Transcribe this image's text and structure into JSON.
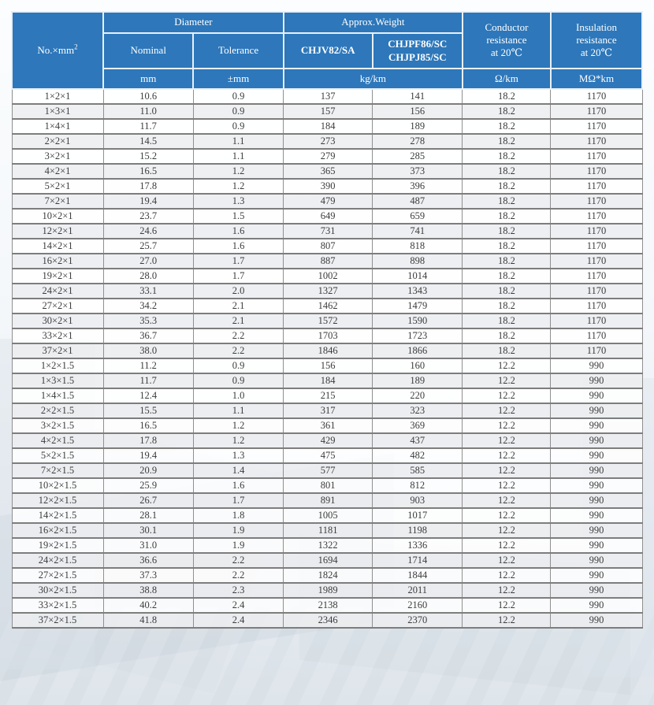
{
  "colors": {
    "header_bg": "#2d77ba",
    "header_text": "#ffffff",
    "grid_line": "#7d7d7d",
    "alt_row": "#ececee"
  },
  "table": {
    "header": {
      "no_label": "No.×mm",
      "no_sup": "2",
      "diameter": "Diameter",
      "approx_weight": "Approx.Weight",
      "nominal": "Nominal",
      "tolerance": "Tolerance",
      "model_a": "CHJV82/SA",
      "model_b": "CHJPF86/SC\nCHJPJ85/SC",
      "conductor": "Conductor\nresistance\nat 20℃",
      "insulation": "Insulation\nresistance\nat 20℃"
    },
    "units": {
      "diameter_nominal": "mm",
      "diameter_tolerance": "±mm",
      "weight": "kg/km",
      "conductor": "Ω/km",
      "insulation": "MΩ*km"
    },
    "rows": [
      [
        "1×2×1",
        "10.6",
        "0.9",
        "137",
        "141",
        "18.2",
        "1170"
      ],
      [
        "1×3×1",
        "11.0",
        "0.9",
        "157",
        "156",
        "18.2",
        "1170"
      ],
      [
        "1×4×1",
        "11.7",
        "0.9",
        "184",
        "189",
        "18.2",
        "1170"
      ],
      [
        "2×2×1",
        "14.5",
        "1.1",
        "273",
        "278",
        "18.2",
        "1170"
      ],
      [
        "3×2×1",
        "15.2",
        "1.1",
        "279",
        "285",
        "18.2",
        "1170"
      ],
      [
        "4×2×1",
        "16.5",
        "1.2",
        "365",
        "373",
        "18.2",
        "1170"
      ],
      [
        "5×2×1",
        "17.8",
        "1.2",
        "390",
        "396",
        "18.2",
        "1170"
      ],
      [
        "7×2×1",
        "19.4",
        "1.3",
        "479",
        "487",
        "18.2",
        "1170"
      ],
      [
        "10×2×1",
        "23.7",
        "1.5",
        "649",
        "659",
        "18.2",
        "1170"
      ],
      [
        "12×2×1",
        "24.6",
        "1.6",
        "731",
        "741",
        "18.2",
        "1170"
      ],
      [
        "14×2×1",
        "25.7",
        "1.6",
        "807",
        "818",
        "18.2",
        "1170"
      ],
      [
        "16×2×1",
        "27.0",
        "1.7",
        "887",
        "898",
        "18.2",
        "1170"
      ],
      [
        "19×2×1",
        "28.0",
        "1.7",
        "1002",
        "1014",
        "18.2",
        "1170"
      ],
      [
        "24×2×1",
        "33.1",
        "2.0",
        "1327",
        "1343",
        "18.2",
        "1170"
      ],
      [
        "27×2×1",
        "34.2",
        "2.1",
        "1462",
        "1479",
        "18.2",
        "1170"
      ],
      [
        "30×2×1",
        "35.3",
        "2.1",
        "1572",
        "1590",
        "18.2",
        "1170"
      ],
      [
        "33×2×1",
        "36.7",
        "2.2",
        "1703",
        "1723",
        "18.2",
        "1170"
      ],
      [
        "37×2×1",
        "38.0",
        "2.2",
        "1846",
        "1866",
        "18.2",
        "1170"
      ],
      [
        "1×2×1.5",
        "11.2",
        "0.9",
        "156",
        "160",
        "12.2",
        "990"
      ],
      [
        "1×3×1.5",
        "11.7",
        "0.9",
        "184",
        "189",
        "12.2",
        "990"
      ],
      [
        "1×4×1.5",
        "12.4",
        "1.0",
        "215",
        "220",
        "12.2",
        "990"
      ],
      [
        "2×2×1.5",
        "15.5",
        "1.1",
        "317",
        "323",
        "12.2",
        "990"
      ],
      [
        "3×2×1.5",
        "16.5",
        "1.2",
        "361",
        "369",
        "12.2",
        "990"
      ],
      [
        "4×2×1.5",
        "17.8",
        "1.2",
        "429",
        "437",
        "12.2",
        "990"
      ],
      [
        "5×2×1.5",
        "19.4",
        "1.3",
        "475",
        "482",
        "12.2",
        "990"
      ],
      [
        "7×2×1.5",
        "20.9",
        "1.4",
        "577",
        "585",
        "12.2",
        "990"
      ],
      [
        "10×2×1.5",
        "25.9",
        "1.6",
        "801",
        "812",
        "12.2",
        "990"
      ],
      [
        "12×2×1.5",
        "26.7",
        "1.7",
        "891",
        "903",
        "12.2",
        "990"
      ],
      [
        "14×2×1.5",
        "28.1",
        "1.8",
        "1005",
        "1017",
        "12.2",
        "990"
      ],
      [
        "16×2×1.5",
        "30.1",
        "1.9",
        "1181",
        "1198",
        "12.2",
        "990"
      ],
      [
        "19×2×1.5",
        "31.0",
        "1.9",
        "1322",
        "1336",
        "12.2",
        "990"
      ],
      [
        "24×2×1.5",
        "36.6",
        "2.2",
        "1694",
        "1714",
        "12.2",
        "990"
      ],
      [
        "27×2×1.5",
        "37.3",
        "2.2",
        "1824",
        "1844",
        "12.2",
        "990"
      ],
      [
        "30×2×1.5",
        "38.8",
        "2.3",
        "1989",
        "2011",
        "12.2",
        "990"
      ],
      [
        "33×2×1.5",
        "40.2",
        "2.4",
        "2138",
        "2160",
        "12.2",
        "990"
      ],
      [
        "37×2×1.5",
        "41.8",
        "2.4",
        "2346",
        "2370",
        "12.2",
        "990"
      ]
    ]
  }
}
